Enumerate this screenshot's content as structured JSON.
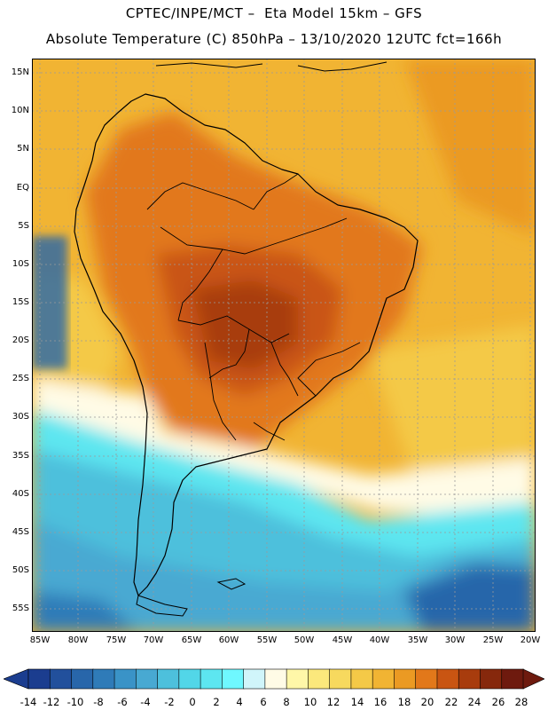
{
  "header": {
    "line1": "CPTEC/INPE/MCT –  Eta Model 15km – GFS",
    "line2": "Absolute Temperature (C) 850hPa – 13/10/2020 12UTC fct=166h"
  },
  "map": {
    "region": "South America",
    "lat_labels": [
      "15N",
      "10N",
      "5N",
      "EQ",
      "5S",
      "10S",
      "15S",
      "20S",
      "25S",
      "30S",
      "35S",
      "40S",
      "45S",
      "50S",
      "55S"
    ],
    "lon_labels": [
      "85W",
      "80W",
      "75W",
      "70W",
      "65W",
      "60W",
      "55W",
      "50W",
      "45W",
      "40W",
      "35W",
      "30W",
      "25W",
      "20W"
    ],
    "land_outline_color": "#000000",
    "grid_color": "#9a9a9a"
  },
  "colorbar": {
    "labels": [
      "-14",
      "-12",
      "-10",
      "-8",
      "-6",
      "-4",
      "-2",
      "0",
      "2",
      "4",
      "6",
      "8",
      "10",
      "12",
      "14",
      "16",
      "18",
      "20",
      "22",
      "24",
      "26",
      "28"
    ],
    "colors": [
      "#1b3d8f",
      "#22509c",
      "#2866aa",
      "#2f7bb8",
      "#3a93c7",
      "#48a9d2",
      "#4dc0dc",
      "#52d6e8",
      "#5de6f0",
      "#6ff8ff",
      "#d0f5fa",
      "#fffbe6",
      "#fff7a8",
      "#fbe87c",
      "#f7d95e",
      "#f4c947",
      "#f1b433",
      "#eb9a23",
      "#e2781a",
      "#c95512",
      "#a83c0d",
      "#86280c",
      "#6e1a0e"
    ]
  }
}
